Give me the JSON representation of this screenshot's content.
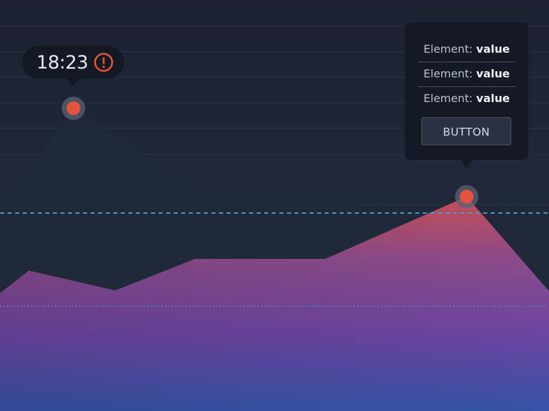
{
  "chart_data": {
    "type": "area",
    "grid": true,
    "series": [
      {
        "color": "#1f2a39",
        "points": [
          [
            0,
            310
          ],
          [
            107,
            158
          ],
          [
            310,
            288
          ],
          [
            500,
            288
          ],
          [
            610,
            350
          ],
          [
            800,
            375
          ]
        ]
      },
      {
        "color_top": "#b24a5a",
        "color_bottom": "#3a55a8",
        "points": [
          [
            0,
            428
          ],
          [
            42,
            395
          ],
          [
            168,
            424
          ],
          [
            284,
            378
          ],
          [
            474,
            378
          ],
          [
            680,
            287
          ],
          [
            800,
            425
          ]
        ]
      }
    ],
    "reference_lines": [
      {
        "value": 311,
        "style": "dashed",
        "color": "#4a98c8"
      },
      {
        "value": 447,
        "style": "dotted",
        "color": "#4a88c0"
      }
    ],
    "highlighted_points": [
      [
        107,
        158
      ],
      [
        680,
        287
      ]
    ]
  },
  "time_tooltip": {
    "time": "18:23",
    "icon": "alert-circle-icon",
    "icon_color": "#e5533d"
  },
  "detail_tooltip": {
    "rows": [
      {
        "label": "Element:",
        "value": "value"
      },
      {
        "label": "Element:",
        "value": "value"
      },
      {
        "label": "Element:",
        "value": "value"
      }
    ],
    "button_label": "BUTTON"
  },
  "colors": {
    "background": "#1f2637",
    "grid": "#2b3446",
    "marker": "#e5533d",
    "marker_halo": "#5b6475"
  }
}
